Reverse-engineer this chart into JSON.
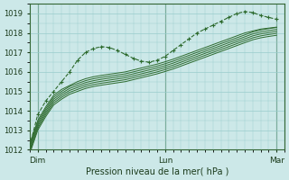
{
  "title": "Pression niveau de la mer( hPa )",
  "bg_color": "#cce8e8",
  "grid_color": "#99cccc",
  "line_color": "#2d6a2d",
  "ylim": [
    1012,
    1019.5
  ],
  "yticks": [
    1012,
    1013,
    1014,
    1015,
    1016,
    1017,
    1018,
    1019
  ],
  "xlim": [
    0,
    96
  ],
  "xtick_positions": [
    3,
    51,
    93
  ],
  "xtick_labels": [
    "Dim",
    "Lun",
    "Mar"
  ],
  "vlines": [
    3,
    51,
    93
  ],
  "series_with_markers": [
    [
      1012.2,
      1013.8,
      1014.5,
      1015.0,
      1015.5,
      1016.0,
      1016.6,
      1017.0,
      1017.2,
      1017.3,
      1017.25,
      1017.1,
      1016.9,
      1016.7,
      1016.55,
      1016.5,
      1016.6,
      1016.8,
      1017.1,
      1017.4,
      1017.7,
      1018.0,
      1018.2,
      1018.4,
      1018.6,
      1018.8,
      1019.0,
      1019.1,
      1019.05,
      1018.9,
      1018.8,
      1018.7
    ]
  ],
  "series_solid": [
    [
      1012.3,
      1013.5,
      1014.2,
      1014.8,
      1015.1,
      1015.3,
      1015.5,
      1015.65,
      1015.75,
      1015.82,
      1015.88,
      1015.94,
      1016.0,
      1016.1,
      1016.2,
      1016.3,
      1016.4,
      1016.52,
      1016.65,
      1016.8,
      1016.95,
      1017.1,
      1017.25,
      1017.4,
      1017.55,
      1017.7,
      1017.85,
      1018.0,
      1018.1,
      1018.2,
      1018.25,
      1018.3
    ],
    [
      1012.2,
      1013.4,
      1014.1,
      1014.7,
      1015.0,
      1015.25,
      1015.4,
      1015.55,
      1015.65,
      1015.72,
      1015.78,
      1015.84,
      1015.9,
      1016.0,
      1016.1,
      1016.2,
      1016.3,
      1016.42,
      1016.55,
      1016.7,
      1016.85,
      1017.0,
      1017.15,
      1017.3,
      1017.45,
      1017.6,
      1017.75,
      1017.9,
      1018.05,
      1018.15,
      1018.22,
      1018.28
    ],
    [
      1012.1,
      1013.3,
      1014.0,
      1014.6,
      1014.9,
      1015.15,
      1015.3,
      1015.45,
      1015.55,
      1015.62,
      1015.68,
      1015.74,
      1015.8,
      1015.9,
      1016.0,
      1016.1,
      1016.2,
      1016.32,
      1016.45,
      1016.6,
      1016.75,
      1016.9,
      1017.05,
      1017.2,
      1017.35,
      1017.5,
      1017.65,
      1017.8,
      1017.95,
      1018.05,
      1018.12,
      1018.18
    ],
    [
      1012.0,
      1013.2,
      1013.9,
      1014.5,
      1014.8,
      1015.05,
      1015.2,
      1015.35,
      1015.45,
      1015.52,
      1015.58,
      1015.64,
      1015.7,
      1015.8,
      1015.9,
      1016.0,
      1016.1,
      1016.22,
      1016.35,
      1016.5,
      1016.65,
      1016.8,
      1016.95,
      1017.1,
      1017.25,
      1017.4,
      1017.55,
      1017.7,
      1017.85,
      1017.95,
      1018.02,
      1018.08
    ],
    [
      1011.9,
      1013.1,
      1013.8,
      1014.4,
      1014.7,
      1014.95,
      1015.1,
      1015.25,
      1015.35,
      1015.42,
      1015.48,
      1015.54,
      1015.6,
      1015.7,
      1015.8,
      1015.9,
      1016.0,
      1016.12,
      1016.25,
      1016.4,
      1016.55,
      1016.7,
      1016.85,
      1017.0,
      1017.15,
      1017.3,
      1017.45,
      1017.6,
      1017.75,
      1017.85,
      1017.92,
      1017.98
    ],
    [
      1011.8,
      1013.0,
      1013.7,
      1014.3,
      1014.6,
      1014.85,
      1015.0,
      1015.15,
      1015.25,
      1015.32,
      1015.38,
      1015.44,
      1015.5,
      1015.6,
      1015.7,
      1015.8,
      1015.9,
      1016.02,
      1016.15,
      1016.3,
      1016.45,
      1016.6,
      1016.75,
      1016.9,
      1017.05,
      1017.2,
      1017.35,
      1017.5,
      1017.65,
      1017.75,
      1017.82,
      1017.88
    ]
  ],
  "x_points": [
    0,
    3,
    6,
    9,
    12,
    15,
    18,
    21,
    24,
    27,
    30,
    33,
    36,
    39,
    42,
    45,
    48,
    51,
    54,
    57,
    60,
    63,
    66,
    69,
    72,
    75,
    78,
    81,
    84,
    87,
    90,
    93
  ]
}
